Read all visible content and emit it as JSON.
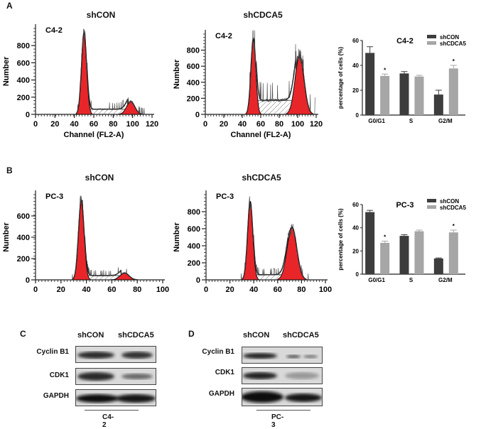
{
  "figure": {
    "panels": {
      "A": "A",
      "B": "B",
      "C": "C",
      "D": "D"
    }
  },
  "chart_data": [
    {
      "id": "A-shCON",
      "type": "area",
      "title": "shCON",
      "annotation": "C4-2",
      "xlabel": "Channel (FL2-A)",
      "ylabel": "Number",
      "xlim": [
        0,
        120
      ],
      "ylim": [
        0,
        1000
      ],
      "xticks": [
        0,
        20,
        40,
        60,
        80,
        100,
        120
      ],
      "yticks": [
        0,
        200,
        400,
        600,
        800
      ],
      "peaks": [
        {
          "name": "G0/G1",
          "x": 50,
          "y": 950
        },
        {
          "name": "G2/M",
          "x": 98,
          "y": 150
        }
      ],
      "s_phase_level": 60
    },
    {
      "id": "A-shCDCA5",
      "type": "area",
      "title": "shCDCA5",
      "annotation": "C4-2",
      "xlabel": "Channel (FL2-A)",
      "ylabel": "Number",
      "xlim": [
        0,
        120
      ],
      "ylim": [
        0,
        1000
      ],
      "xticks": [
        0,
        20,
        40,
        60,
        80,
        100,
        120
      ],
      "yticks": [
        0,
        200,
        400,
        600,
        800
      ],
      "peaks": [
        {
          "name": "G0/G1",
          "x": 52,
          "y": 950
        },
        {
          "name": "G2/M",
          "x": 102,
          "y": 740
        }
      ],
      "s_phase_level": 175
    },
    {
      "id": "A-bar",
      "type": "bar",
      "title": "C4-2",
      "xlabel": "",
      "ylabel": "percentage of cells (%)",
      "ylim": [
        0,
        60
      ],
      "yticks": [
        0,
        20,
        40,
        60
      ],
      "categories": [
        "G0/G1",
        "S",
        "G2/M"
      ],
      "series": [
        {
          "name": "shCON",
          "color": "#3d3d3d",
          "values": [
            50,
            33.5,
            16.5
          ],
          "errors": [
            5,
            1.5,
            3.5
          ]
        },
        {
          "name": "shCDCA5",
          "color": "#a6a6a6",
          "values": [
            31.5,
            31,
            37.5
          ],
          "errors": [
            1.5,
            1,
            2.5
          ]
        }
      ],
      "significance": [
        "*",
        "",
        "*"
      ]
    },
    {
      "id": "B-shCON",
      "type": "area",
      "title": "shCON",
      "annotation": "PC-3",
      "xlabel": "Channel (FL2-A)",
      "ylabel": "Number",
      "xlim": [
        0,
        100
      ],
      "ylim": [
        0,
        800
      ],
      "xticks": [
        0,
        20,
        40,
        60,
        80,
        100
      ],
      "yticks": [
        0,
        200,
        400,
        600
      ],
      "peaks": [
        {
          "name": "G0/G1",
          "x": 36,
          "y": 750
        },
        {
          "name": "G2/M",
          "x": 70,
          "y": 65
        }
      ],
      "s_phase_level": 40
    },
    {
      "id": "B-shCDCA5",
      "type": "area",
      "title": "shCDCA5",
      "annotation": "PC-3",
      "xlabel": "Channel (FL2-A)",
      "ylabel": "Number",
      "xlim": [
        0,
        100
      ],
      "ylim": [
        0,
        1000
      ],
      "xticks": [
        0,
        20,
        40,
        60,
        80,
        100
      ],
      "yticks": [
        0,
        200,
        400,
        600,
        800
      ],
      "peaks": [
        {
          "name": "G0/G1",
          "x": 37,
          "y": 920
        },
        {
          "name": "G2/M",
          "x": 72,
          "y": 620
        }
      ],
      "s_phase_level": 60
    },
    {
      "id": "B-bar",
      "type": "bar",
      "title": "PC-3",
      "xlabel": "",
      "ylabel": "percentage of cells (%)",
      "ylim": [
        0,
        60
      ],
      "yticks": [
        0,
        20,
        40,
        60
      ],
      "categories": [
        "G0/G1",
        "S",
        "G2/M"
      ],
      "series": [
        {
          "name": "shCON",
          "color": "#3d3d3d",
          "values": [
            53.5,
            33,
            13.5
          ],
          "errors": [
            1.5,
            1,
            0.5
          ]
        },
        {
          "name": "shCDCA5",
          "color": "#a6a6a6",
          "values": [
            27,
            37,
            36
          ],
          "errors": [
            1.5,
            1,
            2
          ]
        }
      ],
      "significance": [
        "*",
        "",
        "*"
      ]
    }
  ],
  "western_blots": [
    {
      "panel": "C",
      "cell_line": "C4-2",
      "lanes": [
        "shCON",
        "shCDCA5"
      ],
      "proteins": [
        "Cyclin  B1",
        "CDK1",
        "GAPDH"
      ]
    },
    {
      "panel": "D",
      "cell_line": "PC-3",
      "lanes": [
        "shCON",
        "shCDCA5"
      ],
      "proteins": [
        "Cyclin  B1",
        "CDK1",
        "GAPDH"
      ]
    }
  ],
  "colors": {
    "peak_fill": "#e8262a",
    "bar_dark": "#3d3d3d",
    "bar_light": "#a6a6a6"
  }
}
